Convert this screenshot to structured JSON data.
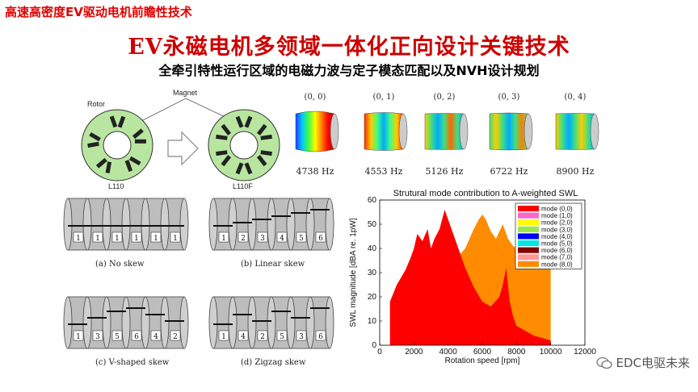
{
  "header": "高速高密度EV驱动电机前瞻性技术",
  "title": "EV永磁电机多领域一体化正向设计关键技术",
  "subtitle": "全牵引特性运行区域的电磁力波与定子模态匹配以及NVH设计规划",
  "rotor_figure": {
    "magnet_label": "Magnet",
    "rotor_label": "Rotor",
    "left_caption": "L110",
    "right_caption": "L110F"
  },
  "modes": [
    {
      "label": "(0, 0)",
      "freq": "4738 Hz"
    },
    {
      "label": "(0, 1)",
      "freq": "4553 Hz"
    },
    {
      "label": "(0, 2)",
      "freq": "5126 Hz"
    },
    {
      "label": "(0, 3)",
      "freq": "6722 Hz"
    },
    {
      "label": "(0, 4)",
      "freq": "8900 Hz"
    }
  ],
  "skews": [
    {
      "caption": "(a) No skew",
      "numbers": [
        "1",
        "1",
        "1",
        "1",
        "1",
        "1"
      ],
      "offsets": [
        0,
        0,
        0,
        0,
        0,
        0
      ]
    },
    {
      "caption": "(b) Linear skew",
      "numbers": [
        "1",
        "2",
        "3",
        "4",
        "5",
        "6"
      ],
      "offsets": [
        0,
        1,
        2,
        3,
        4,
        5
      ]
    },
    {
      "caption": "(c) V-shaped skew",
      "numbers": [
        "1",
        "3",
        "5",
        "6",
        "4",
        "2"
      ],
      "offsets": [
        0,
        2,
        4,
        5,
        3,
        1
      ]
    },
    {
      "caption": "(d) Zigzag skew",
      "numbers": [
        "1",
        "4",
        "2",
        "5",
        "3",
        "6"
      ],
      "offsets": [
        0,
        3,
        1,
        4,
        2,
        5
      ]
    }
  ],
  "chart_data": {
    "type": "area",
    "title": "Strutural mode contribution to A-weighted SWL",
    "xlabel": "Rotation speed [rpm]",
    "ylabel": "SWL magnitude [dBA re. 1pW]",
    "xlim": [
      0,
      12000
    ],
    "ylim": [
      0,
      60
    ],
    "xticks": [
      0,
      2000,
      4000,
      6000,
      8000,
      10000,
      12000
    ],
    "yticks": [
      0,
      10,
      20,
      30,
      40,
      50,
      60
    ],
    "grid": false,
    "legend_position": "top-right",
    "series": [
      {
        "name": "mode (0,0)",
        "color": "#ff0000",
        "x": [
          600,
          1000,
          1500,
          1800,
          2000,
          2200,
          2500,
          2800,
          3000,
          3200,
          3500,
          3800,
          4000,
          4200,
          4500,
          4800,
          5000,
          5500,
          6000,
          6500,
          7000,
          7200,
          7400,
          7600,
          7800,
          8000,
          8500,
          9000,
          9500,
          10000
        ],
        "y": [
          18,
          25,
          31,
          36,
          40,
          46,
          43,
          48,
          40,
          44,
          48,
          56,
          52,
          48,
          42,
          36,
          32,
          24,
          18,
          16,
          20,
          25,
          32,
          18,
          12,
          8,
          6,
          4,
          3,
          2
        ]
      },
      {
        "name": "mode (1,0)",
        "color": "#ff66cc",
        "x": [],
        "y": []
      },
      {
        "name": "mode (2,0)",
        "color": "#ffff00",
        "x": [],
        "y": []
      },
      {
        "name": "mode (3,0)",
        "color": "#99e64d",
        "x": [],
        "y": []
      },
      {
        "name": "mode (4,0)",
        "color": "#0000ff",
        "x": [],
        "y": []
      },
      {
        "name": "mode (5,0)",
        "color": "#00e6e6",
        "x": [],
        "y": []
      },
      {
        "name": "mode (6,0)",
        "color": "#800000",
        "x": [],
        "y": []
      },
      {
        "name": "mode (7,0)",
        "color": "#ff9999",
        "x": [],
        "y": []
      },
      {
        "name": "mode (8,0)",
        "color": "#ff8c00",
        "x": [
          2000,
          2500,
          3000,
          3500,
          4000,
          4500,
          5000,
          5500,
          5800,
          6000,
          6200,
          6500,
          6800,
          7000,
          7200,
          7500,
          7800,
          8000,
          8500,
          9000,
          9500,
          10000
        ],
        "y": [
          5,
          10,
          16,
          26,
          40,
          36,
          40,
          48,
          52,
          54,
          52,
          47,
          44,
          47,
          50,
          44,
          41,
          40,
          38,
          36,
          34,
          32
        ]
      }
    ]
  },
  "watermark": "EDC电驱未来"
}
